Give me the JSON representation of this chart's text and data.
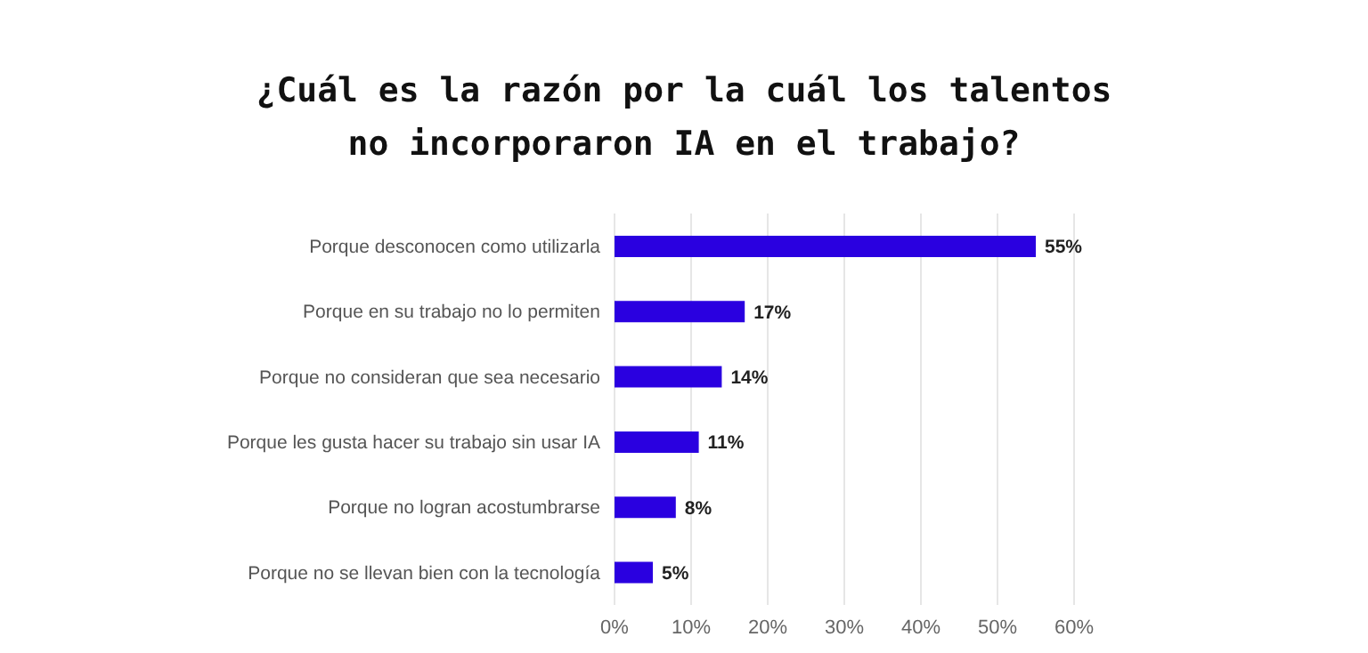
{
  "chart_data": {
    "type": "bar",
    "orientation": "horizontal",
    "title": "¿Cuál es la razón por la cuál los talentos no incorporaron IA en el trabajo?",
    "categories": [
      "Porque desconocen como utilizarla",
      "Porque en su trabajo no lo permiten",
      "Porque no consideran que sea necesario",
      "Porque les gusta hacer su trabajo sin usar IA",
      "Porque no logran acostumbrarse",
      "Porque no se llevan bien con la tecnología"
    ],
    "values": [
      55,
      17,
      14,
      11,
      8,
      5
    ],
    "value_labels": [
      "55%",
      "17%",
      "14%",
      "11%",
      "8%",
      "5%"
    ],
    "color": "#2a00e0",
    "xlim": [
      0,
      60
    ],
    "xticks": [
      {
        "value": 0,
        "label": "0%"
      },
      {
        "value": 10,
        "label": "10%"
      },
      {
        "value": 20,
        "label": "20%"
      },
      {
        "value": 30,
        "label": "30%"
      },
      {
        "value": 40,
        "label": "40%"
      },
      {
        "value": 50,
        "label": "50%"
      },
      {
        "value": 60,
        "label": "60%"
      }
    ],
    "grid": "x",
    "legend": false
  }
}
